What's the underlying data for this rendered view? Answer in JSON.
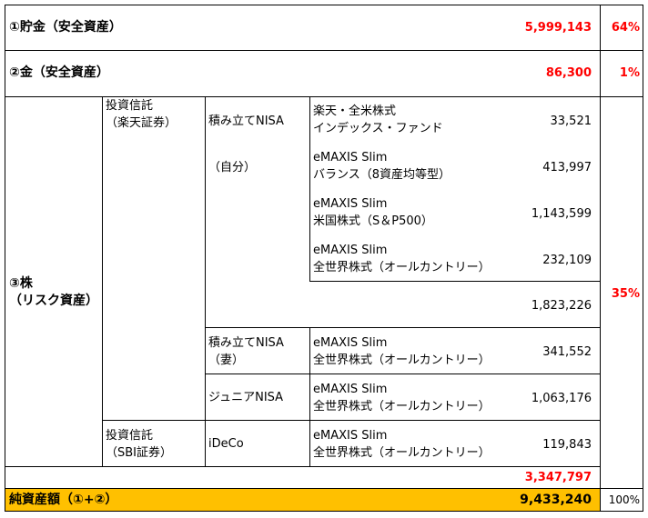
{
  "rows": {
    "savings": {
      "label": "①貯金（安全資産）",
      "amount": "5,999,143",
      "pct": "64%"
    },
    "gold": {
      "label": "②金（安全資産）",
      "amount": "86,300",
      "pct": "1%"
    },
    "stocks": {
      "label_line1": "③株",
      "label_line2": "（リスク資産）",
      "pct": "35%",
      "rakuten": {
        "label_line1": "投資信託",
        "label_line2": "（楽天証券）",
        "nisa_self": {
          "label": "積み立てNISA",
          "sub": "（自分）",
          "funds": [
            {
              "line1": "楽天・全米株式",
              "line2": "インデックス・ファンド",
              "amount": "33,521"
            },
            {
              "line1": "eMAXIS Slim",
              "line2": "バランス（8資産均等型）",
              "amount": "413,997"
            },
            {
              "line1": "eMAXIS Slim",
              "line2": "米国株式（S＆P500）",
              "amount": "1,143,599"
            },
            {
              "line1": "eMAXIS Slim",
              "line2": "全世界株式（オールカントリー）",
              "amount": "232,109"
            }
          ],
          "subtotal": "1,823,226"
        },
        "nisa_wife": {
          "label_line1": "積み立てNISA",
          "label_line2": "（妻）",
          "fund_line1": "eMAXIS Slim",
          "fund_line2": "全世界株式（オールカントリー）",
          "amount": "341,552"
        },
        "junior_nisa": {
          "label": "ジュニアNISA",
          "fund_line1": "eMAXIS Slim",
          "fund_line2": "全世界株式（オールカントリー）",
          "amount": "1,063,176"
        }
      },
      "sbi": {
        "label_line1": "投資信託",
        "label_line2": "（SBI証券）",
        "ideco": {
          "label": "iDeCo",
          "fund_line1": "eMAXIS Slim",
          "fund_line2": "全世界株式（オールカントリー）",
          "amount": "119,843"
        }
      },
      "total": "3,347,797"
    }
  },
  "net_assets": {
    "label": "純資産額（①+②）",
    "amount": "9,433,240",
    "pct": "100%"
  },
  "colors": {
    "total_highlight": "#ffc000",
    "emphasis_text": "#ff0000"
  }
}
